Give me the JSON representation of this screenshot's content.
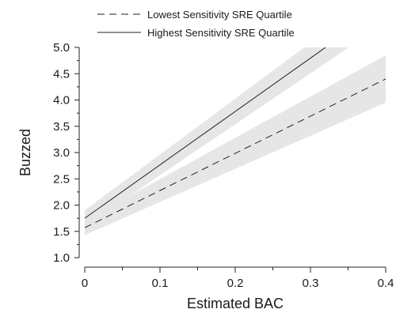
{
  "chart_data": {
    "type": "line",
    "title": "",
    "xlabel": "Estimated BAC",
    "ylabel": "Buzzed",
    "xlim": [
      0,
      0.4
    ],
    "ylim": [
      1.0,
      5.0
    ],
    "x_ticks": [
      "0",
      "0.1",
      "0.2",
      "0.3",
      "0.4"
    ],
    "y_ticks": [
      "1.0",
      "1.5",
      "2.0",
      "2.5",
      "3.0",
      "3.5",
      "4.0",
      "4.5",
      "5.0"
    ],
    "grid": false,
    "legend_position": "top",
    "series": [
      {
        "name": "Lowest Sensitivity SRE Quartile",
        "line_style": "dashed",
        "color": "#222222",
        "x": [
          0,
          0.4
        ],
        "y": [
          1.57,
          4.4
        ],
        "ci_lower": [
          1.43,
          3.95
        ],
        "ci_upper": [
          1.71,
          4.85
        ]
      },
      {
        "name": "Highest Sensitivity SRE Quartile",
        "line_style": "solid",
        "color": "#222222",
        "x": [
          0,
          0.32
        ],
        "y": [
          1.75,
          5.0
        ],
        "ci_lower": [
          1.6,
          4.7
        ],
        "ci_upper": [
          1.9,
          5.3
        ]
      }
    ],
    "band_color": "#e6e6e6"
  }
}
